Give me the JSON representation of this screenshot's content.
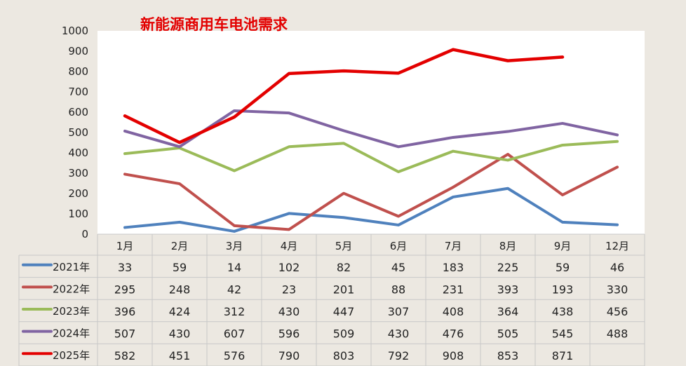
{
  "chart_data": {
    "type": "line",
    "title": "新能源商用车电池需求",
    "title_color": "#e30000",
    "xlabel": "",
    "ylabel": "",
    "ylim": [
      0,
      1000
    ],
    "yticks": [
      0,
      100,
      200,
      300,
      400,
      500,
      600,
      700,
      800,
      900,
      1000
    ],
    "grid": false,
    "legend": "data-table",
    "categories": [
      "1月",
      "2月",
      "3月",
      "4月",
      "5月",
      "6月",
      "7月",
      "8月",
      "9月",
      "12月"
    ],
    "series": [
      {
        "name": "2021年",
        "color": "#4f81bd",
        "values": [
          33,
          59,
          14,
          102,
          82,
          45,
          183,
          225,
          59,
          46
        ]
      },
      {
        "name": "2022年",
        "color": "#c0504d",
        "values": [
          295,
          248,
          42,
          23,
          201,
          88,
          231,
          393,
          193,
          330
        ]
      },
      {
        "name": "2023年",
        "color": "#9bbb59",
        "values": [
          396,
          424,
          312,
          430,
          447,
          307,
          408,
          364,
          438,
          456
        ]
      },
      {
        "name": "2024年",
        "color": "#8064a2",
        "values": [
          507,
          430,
          607,
          596,
          509,
          430,
          476,
          505,
          545,
          488
        ]
      },
      {
        "name": "2025年",
        "color": "#e30000",
        "values": [
          582,
          451,
          576,
          790,
          803,
          792,
          908,
          853,
          871,
          null
        ]
      }
    ]
  }
}
